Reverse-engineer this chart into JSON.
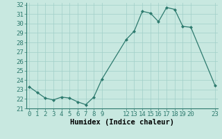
{
  "x": [
    0,
    1,
    2,
    3,
    4,
    5,
    6,
    7,
    8,
    9,
    12,
    13,
    14,
    15,
    16,
    17,
    18,
    19,
    20,
    23
  ],
  "y": [
    23.3,
    22.7,
    22.1,
    21.9,
    22.2,
    22.1,
    21.7,
    21.4,
    22.2,
    24.1,
    28.3,
    29.2,
    31.3,
    31.1,
    30.2,
    31.7,
    31.5,
    29.7,
    29.6,
    23.4
  ],
  "line_color": "#2d7a6e",
  "marker_color": "#2d7a6e",
  "bg_color": "#c8e8e0",
  "grid_color": "#a0cfc8",
  "xlabel": "Humidex (Indice chaleur)",
  "ylim_min": 21.0,
  "ylim_max": 32.2,
  "xlim_min": -0.3,
  "xlim_max": 23.3,
  "yticks": [
    21,
    22,
    23,
    24,
    25,
    26,
    27,
    28,
    29,
    30,
    31,
    32
  ],
  "xticks": [
    0,
    1,
    2,
    3,
    4,
    5,
    6,
    7,
    8,
    9,
    12,
    13,
    14,
    15,
    16,
    17,
    18,
    19,
    20,
    23
  ],
  "xtick_labels": [
    "0",
    "1",
    "2",
    "3",
    "4",
    "5",
    "6",
    "7",
    "8",
    "9",
    "12",
    "13",
    "14",
    "15",
    "16",
    "17",
    "18",
    "19",
    "20",
    "23"
  ],
  "xlabel_fontsize": 7.5,
  "tick_fontsize": 6.5
}
